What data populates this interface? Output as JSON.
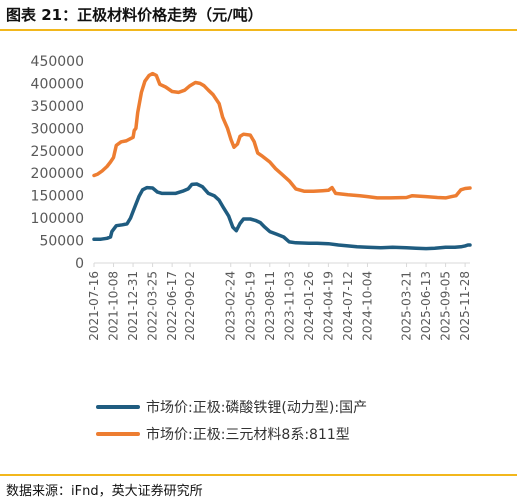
{
  "figure": {
    "title": "图表 21：正极材料价格走势（元/吨）",
    "source": "数据来源：iFnd，英大证券研究所"
  },
  "colors": {
    "lfp": "#1f5c80",
    "ncm": "#ed7d31",
    "rule": "#f2b71c"
  },
  "chart_data": {
    "type": "line",
    "ylim": [
      0,
      450000
    ],
    "yticks": [
      "0",
      "50000",
      "100000",
      "150000",
      "200000",
      "250000",
      "300000",
      "350000",
      "400000",
      "450000"
    ],
    "x_range": [
      "2021-07-16",
      "2025-12-19"
    ],
    "xticks": [
      "2021-07-16",
      "2021-10-08",
      "2021-12-31",
      "2022-03-25",
      "2022-06-17",
      "2022-09-02",
      "2023-02-24",
      "2023-05-19",
      "2023-08-11",
      "2023-11-03",
      "2024-01-26",
      "2024-04-19",
      "2024-07-12",
      "2024-10-04",
      "2025-03-21",
      "2025-06-13",
      "2025-09-05",
      "2025-11-28"
    ],
    "legend_position": "bottom",
    "series": [
      {
        "name": "市场价:正极:磷酸铁锂(动力型):国产",
        "points": [
          [
            "2021-07-16",
            53000
          ],
          [
            "2021-08-15",
            53000
          ],
          [
            "2021-09-10",
            55000
          ],
          [
            "2021-09-25",
            58000
          ],
          [
            "2021-10-01",
            70000
          ],
          [
            "2021-10-20",
            83000
          ],
          [
            "2021-11-15",
            85000
          ],
          [
            "2021-12-05",
            87000
          ],
          [
            "2021-12-20",
            100000
          ],
          [
            "2021-12-31",
            115000
          ],
          [
            "2022-01-10",
            128000
          ],
          [
            "2022-01-25",
            148000
          ],
          [
            "2022-02-10",
            163000
          ],
          [
            "2022-03-01",
            168000
          ],
          [
            "2022-03-25",
            167000
          ],
          [
            "2022-04-15",
            158000
          ],
          [
            "2022-05-05",
            155000
          ],
          [
            "2022-06-01",
            155000
          ],
          [
            "2022-07-01",
            155000
          ],
          [
            "2022-08-01",
            160000
          ],
          [
            "2022-08-25",
            165000
          ],
          [
            "2022-09-10",
            175000
          ],
          [
            "2022-10-01",
            176000
          ],
          [
            "2022-10-25",
            170000
          ],
          [
            "2022-11-20",
            155000
          ],
          [
            "2022-12-15",
            150000
          ],
          [
            "2023-01-05",
            140000
          ],
          [
            "2023-01-25",
            122000
          ],
          [
            "2023-02-15",
            105000
          ],
          [
            "2023-03-05",
            80000
          ],
          [
            "2023-03-20",
            72000
          ],
          [
            "2023-04-05",
            88000
          ],
          [
            "2023-04-20",
            98000
          ],
          [
            "2023-05-19",
            98000
          ],
          [
            "2023-06-10",
            95000
          ],
          [
            "2023-07-01",
            90000
          ],
          [
            "2023-07-20",
            80000
          ],
          [
            "2023-08-11",
            70000
          ],
          [
            "2023-09-10",
            64000
          ],
          [
            "2023-10-10",
            58000
          ],
          [
            "2023-11-03",
            47000
          ],
          [
            "2023-12-01",
            45000
          ],
          [
            "2024-01-26",
            44000
          ],
          [
            "2024-03-01",
            44000
          ],
          [
            "2024-04-19",
            43000
          ],
          [
            "2024-06-01",
            40000
          ],
          [
            "2024-07-12",
            38000
          ],
          [
            "2024-08-20",
            36000
          ],
          [
            "2024-10-04",
            35000
          ],
          [
            "2024-12-01",
            34000
          ],
          [
            "2025-01-20",
            35000
          ],
          [
            "2025-03-21",
            34000
          ],
          [
            "2025-05-01",
            33000
          ],
          [
            "2025-06-13",
            32000
          ],
          [
            "2025-07-20",
            33000
          ],
          [
            "2025-09-05",
            35000
          ],
          [
            "2025-10-15",
            35000
          ],
          [
            "2025-11-10",
            36000
          ],
          [
            "2025-11-28",
            38000
          ],
          [
            "2025-12-10",
            40000
          ],
          [
            "2025-12-19",
            40000
          ]
        ]
      },
      {
        "name": "市场价:正极:三元材料8系:811型",
        "points": [
          [
            "2021-07-16",
            195000
          ],
          [
            "2021-08-01",
            198000
          ],
          [
            "2021-08-20",
            205000
          ],
          [
            "2021-09-10",
            215000
          ],
          [
            "2021-09-25",
            225000
          ],
          [
            "2021-10-08",
            235000
          ],
          [
            "2021-10-20",
            262000
          ],
          [
            "2021-11-10",
            270000
          ],
          [
            "2021-12-01",
            272000
          ],
          [
            "2021-12-31",
            280000
          ],
          [
            "2022-01-05",
            295000
          ],
          [
            "2022-01-12",
            300000
          ],
          [
            "2022-01-20",
            335000
          ],
          [
            "2022-02-05",
            380000
          ],
          [
            "2022-02-20",
            405000
          ],
          [
            "2022-03-10",
            418000
          ],
          [
            "2022-03-25",
            422000
          ],
          [
            "2022-04-10",
            418000
          ],
          [
            "2022-04-25",
            398000
          ],
          [
            "2022-05-20",
            392000
          ],
          [
            "2022-06-17",
            382000
          ],
          [
            "2022-07-15",
            380000
          ],
          [
            "2022-08-10",
            385000
          ],
          [
            "2022-09-02",
            395000
          ],
          [
            "2022-09-25",
            402000
          ],
          [
            "2022-10-15",
            400000
          ],
          [
            "2022-11-01",
            395000
          ],
          [
            "2022-11-20",
            385000
          ],
          [
            "2022-12-10",
            375000
          ],
          [
            "2023-01-05",
            355000
          ],
          [
            "2023-01-20",
            325000
          ],
          [
            "2023-02-10",
            300000
          ],
          [
            "2023-02-25",
            275000
          ],
          [
            "2023-03-10",
            258000
          ],
          [
            "2023-03-25",
            265000
          ],
          [
            "2023-04-05",
            282000
          ],
          [
            "2023-04-20",
            287000
          ],
          [
            "2023-05-19",
            285000
          ],
          [
            "2023-06-05",
            270000
          ],
          [
            "2023-06-20",
            245000
          ],
          [
            "2023-07-10",
            238000
          ],
          [
            "2023-08-11",
            225000
          ],
          [
            "2023-09-05",
            210000
          ],
          [
            "2023-10-01",
            198000
          ],
          [
            "2023-11-03",
            183000
          ],
          [
            "2023-12-01",
            165000
          ],
          [
            "2024-01-05",
            160000
          ],
          [
            "2024-02-15",
            160000
          ],
          [
            "2024-03-25",
            161000
          ],
          [
            "2024-04-19",
            162000
          ],
          [
            "2024-05-05",
            168000
          ],
          [
            "2024-05-20",
            155000
          ],
          [
            "2024-07-12",
            152000
          ],
          [
            "2024-09-01",
            150000
          ],
          [
            "2024-10-04",
            148000
          ],
          [
            "2024-11-15",
            145000
          ],
          [
            "2025-01-10",
            145000
          ],
          [
            "2025-03-21",
            146000
          ],
          [
            "2025-04-15",
            150000
          ],
          [
            "2025-06-13",
            148000
          ],
          [
            "2025-08-01",
            146000
          ],
          [
            "2025-09-05",
            145000
          ],
          [
            "2025-10-01",
            148000
          ],
          [
            "2025-10-20",
            150000
          ],
          [
            "2025-11-10",
            163000
          ],
          [
            "2025-11-28",
            166000
          ],
          [
            "2025-12-19",
            167000
          ]
        ]
      }
    ]
  }
}
